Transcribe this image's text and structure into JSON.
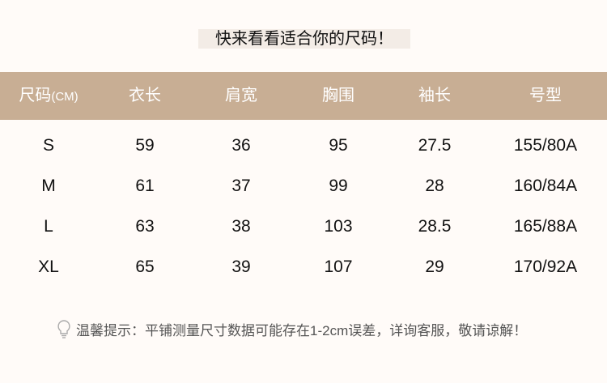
{
  "title": "快来看看适合你的尺码！",
  "header": {
    "size_label": "尺码",
    "size_unit": "(CM)",
    "columns": [
      "衣长",
      "肩宽",
      "胸围",
      "袖长",
      "号型"
    ]
  },
  "rows": [
    [
      "S",
      "59",
      "36",
      "95",
      "27.5",
      "155/80A"
    ],
    [
      "M",
      "61",
      "37",
      "99",
      "28",
      "160/84A"
    ],
    [
      "L",
      "63",
      "38",
      "103",
      "28.5",
      "165/88A"
    ],
    [
      "XL",
      "65",
      "39",
      "107",
      "29",
      "170/92A"
    ]
  ],
  "tip": {
    "icon": "lightbulb-icon",
    "text": "温馨提示：平铺测量尺寸数据可能存在1-2cm误差，详询客服，敬请谅解！"
  },
  "colors": {
    "header_bg": "#c8ae94",
    "background": "#fffbf8",
    "title_bg": "#f3ece6"
  }
}
